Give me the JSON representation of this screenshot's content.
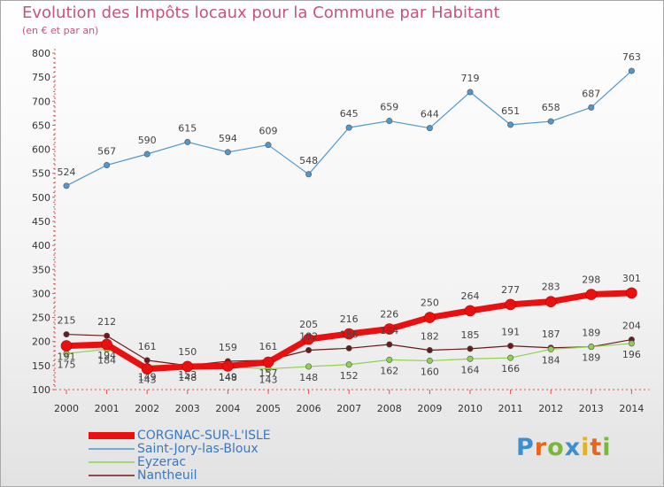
{
  "header": {
    "title": "Evolution des Impôts locaux pour la Commune par Habitant",
    "subtitle": "(en € et par an)"
  },
  "logo": {
    "text": "Proxiti"
  },
  "chart_data": {
    "type": "line",
    "x": [
      2000,
      2001,
      2002,
      2003,
      2004,
      2005,
      2006,
      2007,
      2008,
      2009,
      2010,
      2011,
      2012,
      2013,
      2014
    ],
    "ylim": [
      100,
      800
    ],
    "yticks": [
      100,
      150,
      200,
      250,
      300,
      350,
      400,
      450,
      500,
      550,
      600,
      650,
      700,
      750,
      800
    ],
    "grid": false,
    "legend": "bottom-left",
    "series": [
      {
        "name": "CORGNAC-SUR-L'ISLE",
        "color": "#e81010",
        "values": [
          191,
          194,
          143,
          148,
          149,
          157,
          205,
          216,
          226,
          250,
          264,
          277,
          283,
          298,
          301
        ],
        "labels": [
          "191",
          "194",
          "143",
          "148",
          "149",
          "157",
          "205",
          "216",
          "226",
          "250",
          "264",
          "277",
          "283",
          "298",
          "301"
        ]
      },
      {
        "name": "Saint-Jory-las-Bloux",
        "color": "#4f97cc",
        "values": [
          524,
          567,
          590,
          615,
          594,
          609,
          548,
          645,
          659,
          644,
          719,
          651,
          658,
          687,
          763
        ],
        "labels": [
          "524",
          "567",
          "590",
          "615",
          "594",
          "609",
          "548",
          "645",
          "659",
          "644",
          "719",
          "651",
          "658",
          "687",
          "763"
        ]
      },
      {
        "name": "Eyzerac",
        "color": "#8fd14f",
        "values": [
          175,
          184,
          149,
          153,
          148,
          143,
          148,
          152,
          162,
          160,
          164,
          166,
          184,
          189,
          196
        ],
        "labels": [
          "175",
          "184",
          "149",
          "153",
          "148",
          "143",
          "148",
          "152",
          "162",
          "160",
          "164",
          "166",
          "184",
          "189",
          "196"
        ]
      },
      {
        "name": "Nantheuil",
        "color": "#6a1a1a",
        "values": [
          215,
          212,
          161,
          150,
          159,
          161,
          182,
          186,
          194,
          182,
          185,
          191,
          187,
          189,
          204
        ],
        "labels": [
          "215",
          "212",
          "161",
          "150",
          "159",
          "161",
          "182",
          "186",
          "194",
          "182",
          "185",
          "191",
          "187",
          "189",
          "204"
        ]
      }
    ]
  }
}
